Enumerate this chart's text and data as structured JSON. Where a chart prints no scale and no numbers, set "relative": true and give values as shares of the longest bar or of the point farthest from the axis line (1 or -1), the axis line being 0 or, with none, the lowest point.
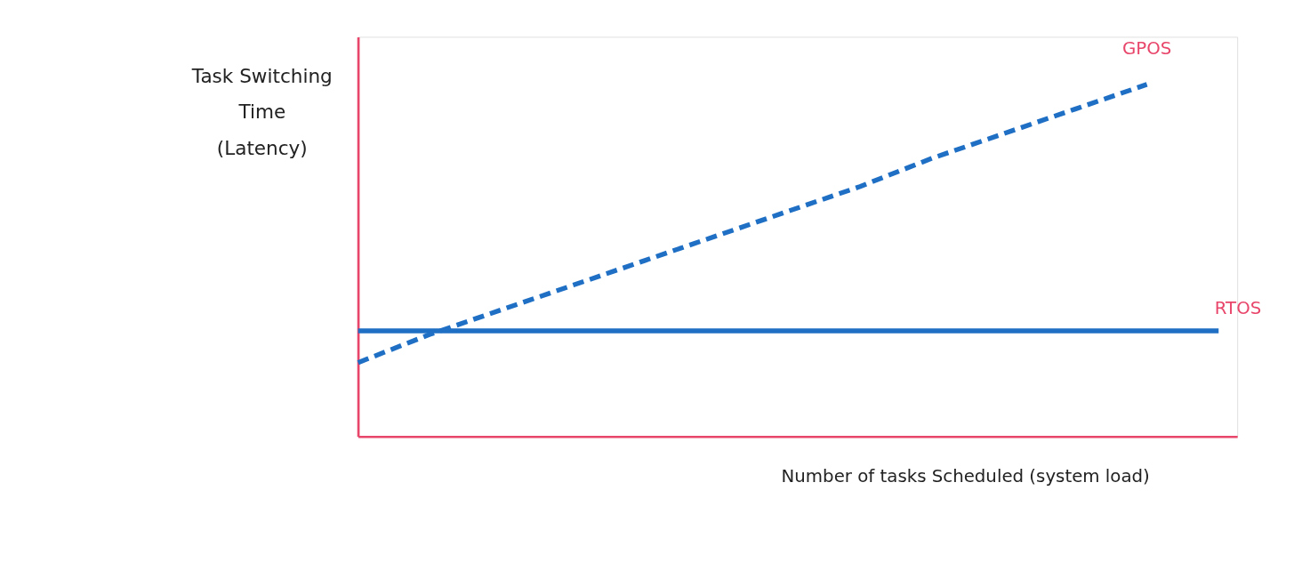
{
  "chart_data": {
    "type": "line",
    "relative": true,
    "xlabel": "Number of tasks Scheduled (system load)",
    "ylabel": "Task Switching\nTime\n(Latency)",
    "categories": [
      null,
      null,
      null,
      null,
      null,
      null,
      null,
      null,
      null,
      null,
      null,
      null,
      null
    ],
    "series": [
      {
        "name": "GPOS",
        "color": "#1f6fc5",
        "line_style": "dashed",
        "values": [
          0.21,
          0.29,
          0.36,
          0.43,
          0.5,
          0.57,
          0.64,
          0.71,
          0.79,
          0.86,
          0.93,
          1.0,
          null
        ]
      },
      {
        "name": "RTOS",
        "color": "#1f6fc5",
        "line_style": "solid",
        "values": [
          0.3,
          0.3,
          0.3,
          0.3,
          0.3,
          0.3,
          0.3,
          0.3,
          0.3,
          0.3,
          0.3,
          0.3,
          0.3
        ]
      }
    ],
    "marker": "none"
  }
}
